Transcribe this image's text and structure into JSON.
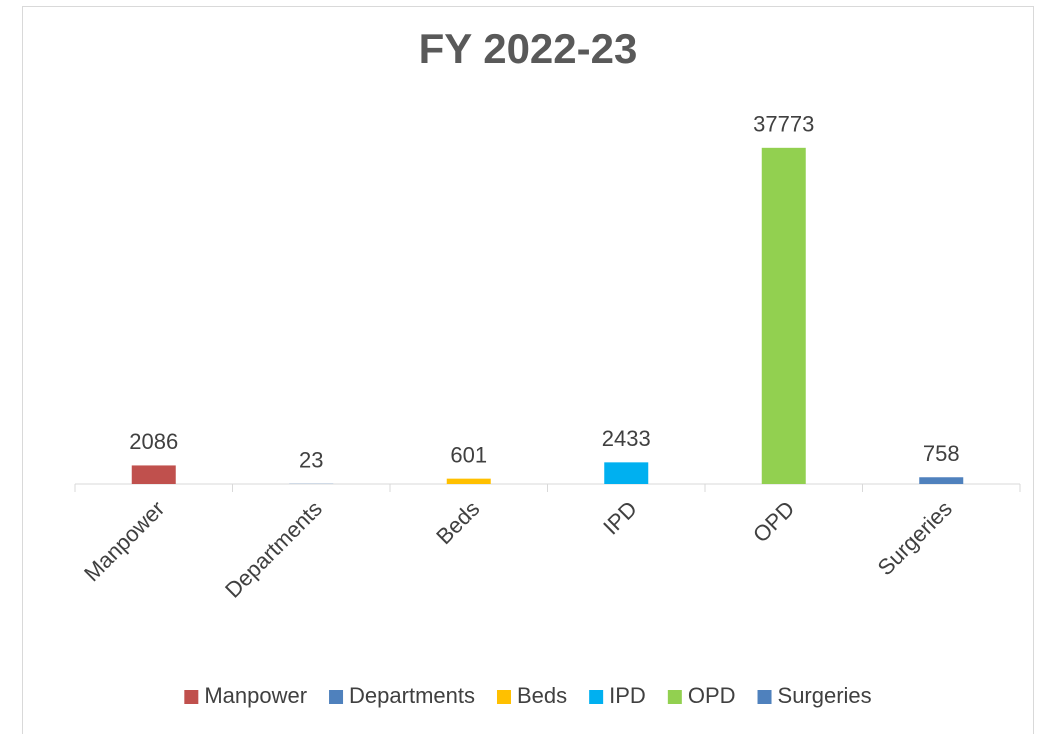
{
  "chart_data": {
    "type": "bar",
    "title": "FY 2022-23",
    "categories": [
      "Manpower",
      "Departments",
      "Beds",
      "IPD",
      "OPD",
      "Surgeries"
    ],
    "values": [
      2086,
      23,
      601,
      2433,
      37773,
      758
    ],
    "colors": [
      "#c0504d",
      "#4f81bd",
      "#ffc000",
      "#00b0f0",
      "#92d050",
      "#4f81bd"
    ],
    "ylim": [
      0,
      40000
    ],
    "legend": "bottom"
  }
}
